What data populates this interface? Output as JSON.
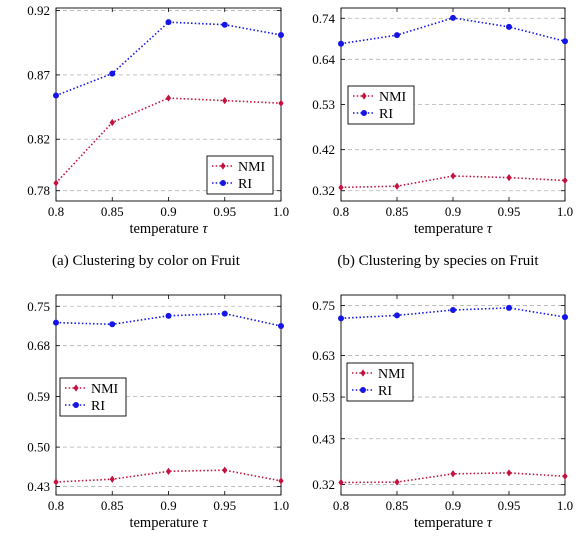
{
  "colors": {
    "nmi": "#c4113e",
    "ri": "#1515e6",
    "grid": "#b3b3b3"
  },
  "chart_data": [
    {
      "type": "line",
      "caption": "(a)  Clustering by color on Fruit",
      "xlabel": "temperature",
      "xlabel_symbol": "τ",
      "x": [
        0.8,
        0.85,
        0.9,
        0.95,
        1.0
      ],
      "x_tick_labels": [
        "0.8",
        "0.85",
        "0.9",
        "0.95",
        "1.0"
      ],
      "y_ticks": [
        0.78,
        0.82,
        0.87,
        0.92
      ],
      "y_tick_labels": [
        "0.78",
        "0.82",
        "0.87",
        "0.92"
      ],
      "ylim": [
        0.772,
        0.922
      ],
      "grid": true,
      "legend_position": "bottom-right",
      "series": [
        {
          "name": "NMI",
          "marker": "diamond",
          "values": [
            0.786,
            0.833,
            0.852,
            0.85,
            0.848
          ]
        },
        {
          "name": "RI",
          "marker": "circle",
          "values": [
            0.854,
            0.871,
            0.911,
            0.909,
            0.901
          ]
        }
      ]
    },
    {
      "type": "line",
      "caption": "(b)  Clustering by species on Fruit",
      "xlabel": "temperature",
      "xlabel_symbol": "τ",
      "x": [
        0.8,
        0.85,
        0.9,
        0.95,
        1.0
      ],
      "x_tick_labels": [
        "0.8",
        "0.85",
        "0.9",
        "0.95",
        "1.0"
      ],
      "y_ticks": [
        0.32,
        0.42,
        0.53,
        0.64,
        0.74
      ],
      "y_tick_labels": [
        "0.32",
        "0.42",
        "0.53",
        "0.64",
        "0.74"
      ],
      "ylim": [
        0.295,
        0.765
      ],
      "grid": true,
      "legend_position": "middle-left",
      "series": [
        {
          "name": "NMI",
          "marker": "diamond",
          "values": [
            0.328,
            0.331,
            0.356,
            0.352,
            0.345
          ]
        },
        {
          "name": "RI",
          "marker": "circle",
          "values": [
            0.678,
            0.699,
            0.741,
            0.719,
            0.684
          ]
        }
      ]
    },
    {
      "type": "line",
      "caption": "",
      "xlabel": "temperature",
      "xlabel_symbol": "τ",
      "x": [
        0.8,
        0.85,
        0.9,
        0.95,
        1.0
      ],
      "x_tick_labels": [
        "0.8",
        "0.85",
        "0.9",
        "0.95",
        "1.0"
      ],
      "y_ticks": [
        0.43,
        0.5,
        0.59,
        0.68,
        0.75
      ],
      "y_tick_labels": [
        "0.43",
        "0.50",
        "0.59",
        "0.68",
        "0.75"
      ],
      "ylim": [
        0.415,
        0.77
      ],
      "grid": true,
      "legend_position": "middle-left",
      "series": [
        {
          "name": "NMI",
          "marker": "diamond",
          "values": [
            0.438,
            0.443,
            0.457,
            0.459,
            0.44
          ]
        },
        {
          "name": "RI",
          "marker": "circle",
          "values": [
            0.721,
            0.718,
            0.733,
            0.737,
            0.715
          ]
        }
      ]
    },
    {
      "type": "line",
      "caption": "",
      "xlabel": "temperature",
      "xlabel_symbol": "τ",
      "x": [
        0.8,
        0.85,
        0.9,
        0.95,
        1.0
      ],
      "x_tick_labels": [
        "0.8",
        "0.85",
        "0.9",
        "0.95",
        "1.0"
      ],
      "y_ticks": [
        0.32,
        0.43,
        0.53,
        0.63,
        0.75
      ],
      "y_tick_labels": [
        "0.32",
        "0.43",
        "0.53",
        "0.63",
        "0.75"
      ],
      "ylim": [
        0.295,
        0.775
      ],
      "grid": true,
      "legend_position": "middle-left",
      "series": [
        {
          "name": "NMI",
          "marker": "diamond",
          "values": [
            0.325,
            0.326,
            0.346,
            0.348,
            0.34
          ]
        },
        {
          "name": "RI",
          "marker": "circle",
          "values": [
            0.719,
            0.726,
            0.739,
            0.744,
            0.722
          ]
        }
      ]
    }
  ]
}
